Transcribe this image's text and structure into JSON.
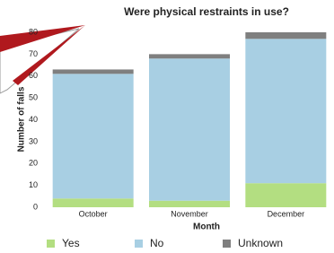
{
  "chart_data": {
    "type": "stacked_bar",
    "title": "Were physical restraints in use?",
    "x_label": "Month",
    "y_label": "Number of falls",
    "categories": [
      "October",
      "November",
      "December"
    ],
    "series": [
      {
        "name": "Yes",
        "color": "#b3de81",
        "values": [
          4,
          3,
          11
        ]
      },
      {
        "name": "No",
        "color": "#a8cfe3",
        "values": [
          57,
          65,
          66
        ]
      },
      {
        "name": "Unknown",
        "color": "#7f7f7f",
        "values": [
          2,
          2,
          3
        ]
      }
    ],
    "ylim": [
      0,
      80
    ],
    "yticks": [
      0,
      10,
      20,
      30,
      40,
      50,
      60,
      70,
      80
    ],
    "grid": false,
    "legend": "bottom"
  }
}
